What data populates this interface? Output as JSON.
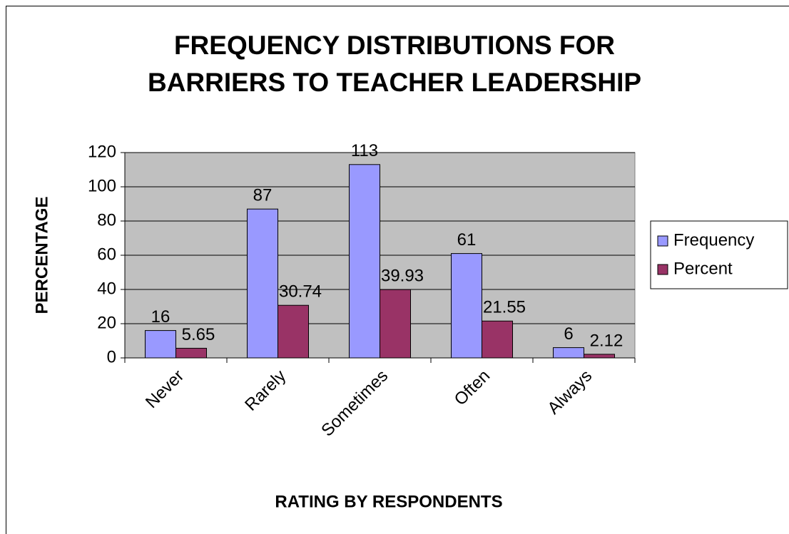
{
  "chart_data": {
    "type": "bar",
    "title": [
      "FREQUENCY DISTRIBUTIONS FOR",
      "BARRIERS TO TEACHER LEADERSHIP"
    ],
    "x_label": "RATING BY RESPONDENTS",
    "y_label": "PERCENTAGE",
    "categories": [
      "Never",
      "Rarely",
      "Sometimes",
      "Often",
      "Always"
    ],
    "series": [
      {
        "name": "Frequency",
        "color": "#9999ff",
        "values": [
          16,
          87,
          113,
          61,
          6
        ]
      },
      {
        "name": "Percent",
        "color": "#993366",
        "values": [
          5.65,
          30.74,
          39.93,
          21.55,
          2.12
        ]
      }
    ],
    "ylim": [
      0,
      120
    ],
    "yticks": [
      0,
      20,
      40,
      60,
      80,
      100,
      120
    ],
    "grid": true,
    "legend": "right",
    "plot_background": "#c0c0c0"
  }
}
